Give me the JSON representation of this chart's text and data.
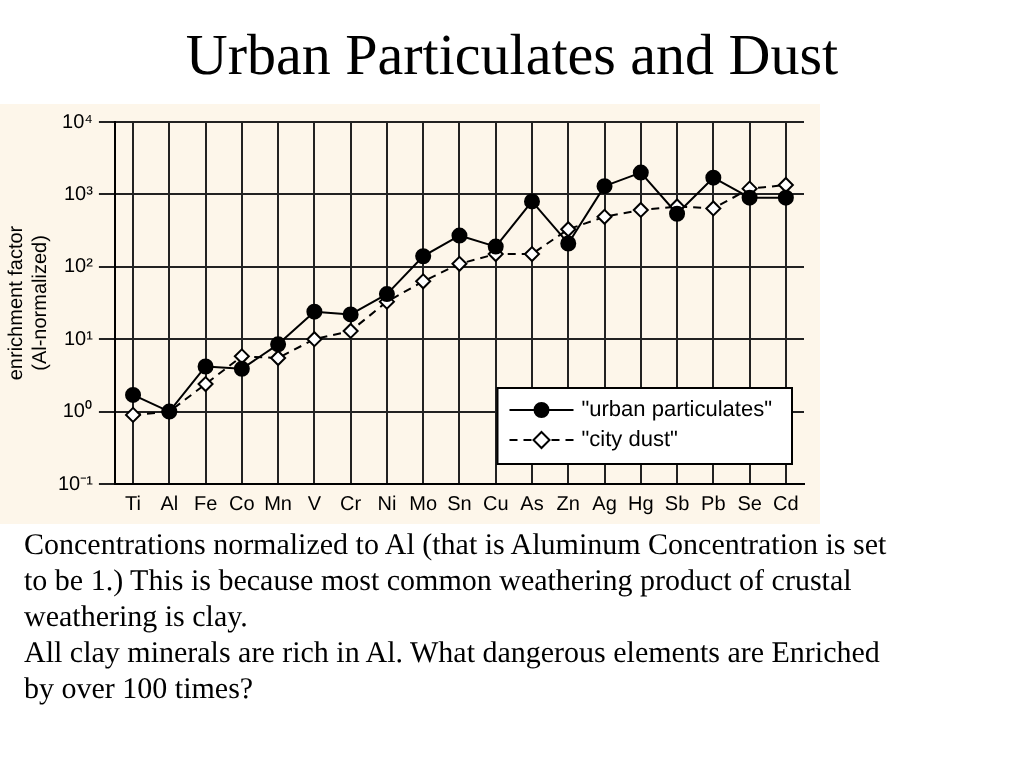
{
  "chart_data": {
    "type": "line",
    "title": "Urban Particulates and Dust",
    "ylabel": "enrichment factor\n(Al-normalized)",
    "categories": [
      "Ti",
      "Al",
      "Fe",
      "Co",
      "Mn",
      "V",
      "Cr",
      "Ni",
      "Mo",
      "Sn",
      "Cu",
      "As",
      "Zn",
      "Ag",
      "Hg",
      "Sb",
      "Pb",
      "Se",
      "Cd"
    ],
    "series": [
      {
        "name": "\"urban particulates\"",
        "color": "#000000",
        "marker": "circle",
        "line_style": "solid",
        "values": [
          1.7,
          1.0,
          4.2,
          3.9,
          8.5,
          24,
          22,
          42,
          140,
          270,
          190,
          800,
          210,
          1300,
          2000,
          540,
          1700,
          900,
          900
        ]
      },
      {
        "name": "\"city dust\"",
        "color": "#000000",
        "marker": "diamond",
        "line_style": "dashed",
        "values": [
          0.9,
          1.0,
          2.4,
          5.8,
          5.5,
          10,
          13,
          33,
          63,
          110,
          150,
          150,
          330,
          490,
          610,
          680,
          640,
          1200,
          1350
        ]
      }
    ],
    "log": "y",
    "ylim": [
      0.1,
      10000
    ],
    "yticks": [
      {
        "value": 0.1,
        "label": "10⁻¹"
      },
      {
        "value": 1,
        "label": "10⁰"
      },
      {
        "value": 10,
        "label": "10¹"
      },
      {
        "value": 100,
        "label": "10²"
      },
      {
        "value": 1000,
        "label": "10³"
      },
      {
        "value": 10000,
        "label": "10⁴"
      }
    ],
    "grid": true,
    "legend": "bottom right",
    "annotations": [
      "Concentrations normalized to Al (that is Aluminum Concentration is set to be 1.) This is because most common weathering product of crustal weathering is clay.",
      "All clay minerals are rich in Al.  What dangerous elements are Enriched by over 100 times?"
    ]
  }
}
